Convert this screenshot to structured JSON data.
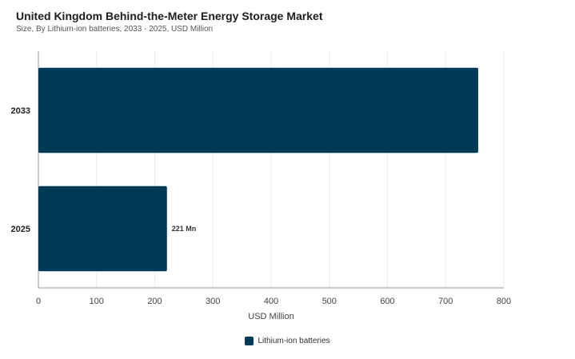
{
  "chart_data": {
    "type": "bar",
    "orientation": "horizontal",
    "title": "United Kingdom Behind-the-Meter Energy Storage Market",
    "subtitle": "Size, By Lithium-ion batteries, 2033 - 2025, USD Million",
    "categories": [
      "2033",
      "2025"
    ],
    "series": [
      {
        "name": "Lithium-ion batteries",
        "values": [
          756,
          221
        ],
        "data_labels": [
          "",
          "221 Mn"
        ],
        "color": "#003a57"
      }
    ],
    "xlabel": "USD Million",
    "ylabel": "",
    "xlim": [
      0,
      800
    ],
    "xticks": [
      0,
      100,
      200,
      300,
      400,
      500,
      600,
      700,
      800
    ],
    "grid": true,
    "legend_position": "bottom"
  }
}
